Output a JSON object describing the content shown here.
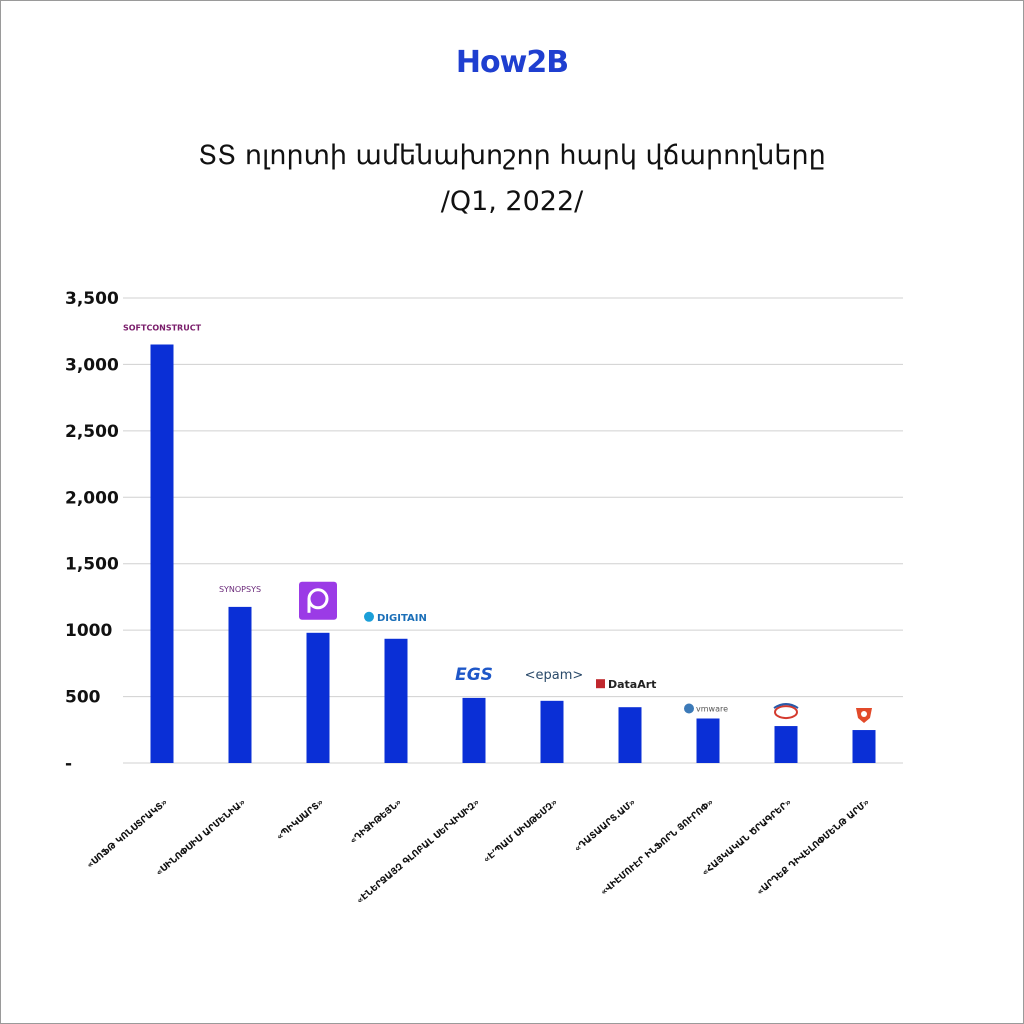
{
  "header": {
    "brand_logo": "How2B",
    "title_line1": "ՏՏ ոլորտի ամենախոշոր հարկ վճարողները",
    "title_line2": "/Q1, 2022/"
  },
  "colors": {
    "bar": "#0a2fd6",
    "brand": "#1f3fd0",
    "grid": "#d0d0d0"
  },
  "chart_data": {
    "type": "bar",
    "title": "ՏՏ ոլորտի ամենախոշոր հարկ վճարողները /Q1, 2022/",
    "xlabel": "",
    "ylabel": "",
    "ylim": [
      0,
      3500
    ],
    "yticks": [
      0,
      500,
      1000,
      1500,
      2000,
      2500,
      3000,
      3500
    ],
    "ytick_labels": [
      "-",
      "500",
      "1000",
      "1,500",
      "2,000",
      "2,500",
      "3,000",
      "3,500"
    ],
    "grid": true,
    "categories": [
      "«ՍՈՖԹ ԿՈՆՍՏՐԱԿՏ»",
      "«ՍԻՆՈՓՍԻՍ ԱՐՄԵՆԻԱ»",
      "«ՊԻԿՍԱՐՏ»",
      "«ԴԻՋԻԹԵՅՆ»",
      "«ԷՆԵՐՋԱՅԶ ԳԼՈԲԱԼ ՍԵՐՎԻՍԻԶ»",
      "«Է՚ՊԱՄ ՍԻՍԹԵՄԶ»",
      "«ԴԱՏԱԱՐՏ.ԱՄ»",
      "«ՎԻԷՄՈՒԷՐ ԻՆՖՈՐՆ ՅՈՒՐՈՓ»",
      "«ՀԱՅԿԱԿԱՆ ԾՐԱԳՐԵՐ»",
      "«ԱՐԴԵՔ ԴԻՎԵԼՈՓՄԵՆԹ ԱՐՄ»"
    ],
    "values": [
      3150,
      1175,
      980,
      935,
      490,
      468,
      420,
      335,
      278,
      248
    ],
    "logos": [
      {
        "name": "softconstruct-logo",
        "text": "SOFTCONSTRUCT"
      },
      {
        "name": "synopsys-logo",
        "text": "SYNOPSYS"
      },
      {
        "name": "picsart-logo",
        "text": ""
      },
      {
        "name": "digitain-logo",
        "text": "DIGITAIN"
      },
      {
        "name": "egs-logo",
        "text": "EGS"
      },
      {
        "name": "epam-logo",
        "text": "<epam>"
      },
      {
        "name": "dataart-logo",
        "text": "DataArt"
      },
      {
        "name": "vmware-logo",
        "text": "vmware"
      },
      {
        "name": "armsoft-logo",
        "text": ""
      },
      {
        "name": "ardeq-logo",
        "text": ""
      }
    ]
  }
}
